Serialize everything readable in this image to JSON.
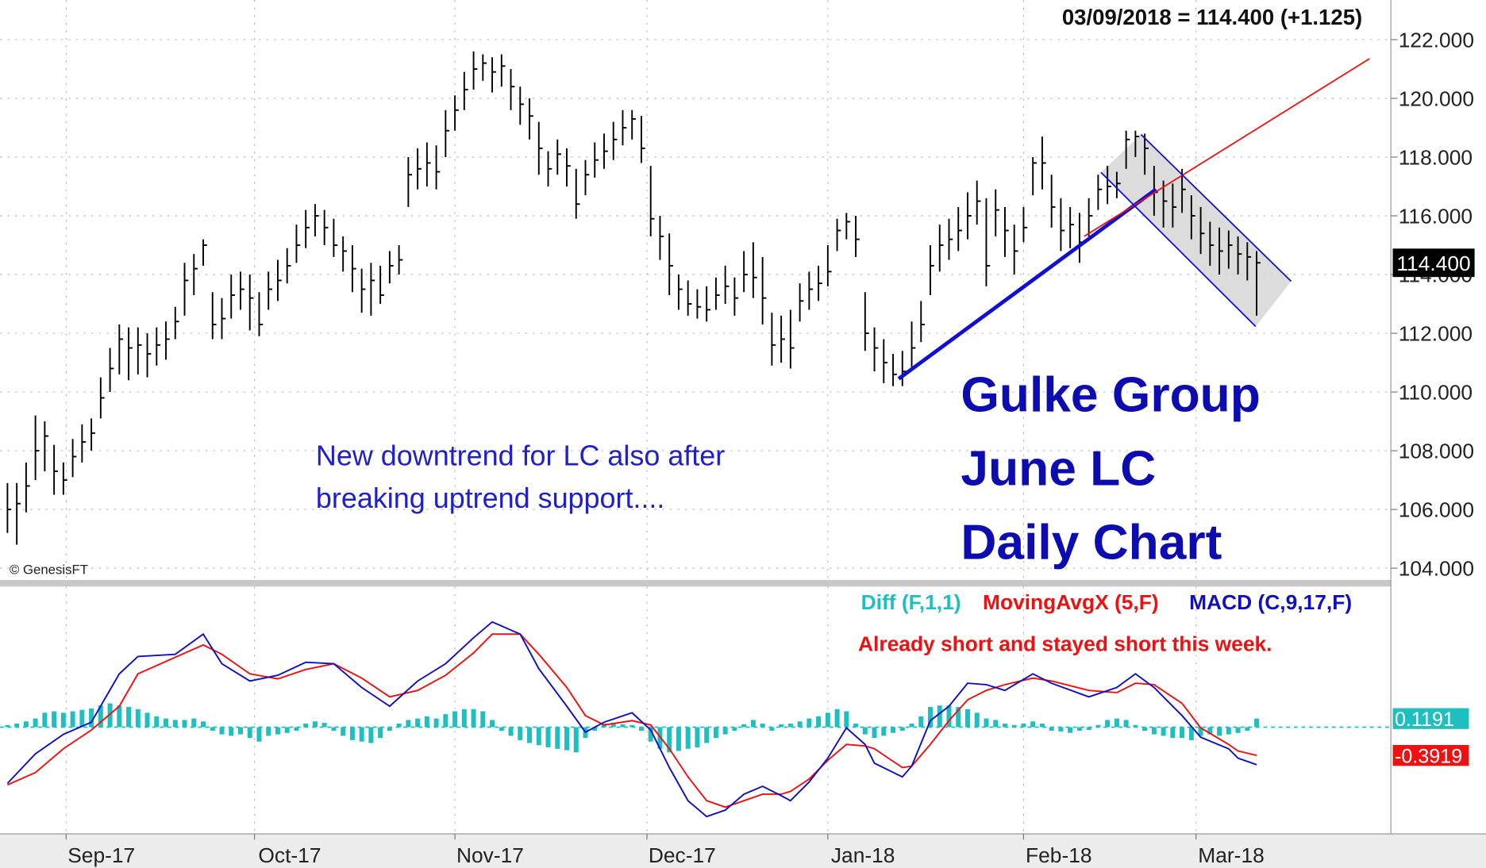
{
  "chart_data": [
    {
      "type": "ohlc",
      "title": "03/09/2018 = 114.400 (+1.125)",
      "last_close_label": "114.400",
      "copyright": "© GenesisFT",
      "annotations": [
        "New downtrend for LC also after",
        "breaking uptrend support...."
      ],
      "headline": [
        "Gulke Group",
        "June LC",
        "Daily Chart"
      ],
      "color": "#000000",
      "grid": true,
      "xlim": [
        -0.8,
        148.4
      ],
      "xticks": [
        {
          "value": 6.3,
          "label": "Sep-17"
        },
        {
          "value": 26.5,
          "label": "Oct-17"
        },
        {
          "value": 48,
          "label": "Nov-17"
        },
        {
          "value": 68.6,
          "label": "Dec-17"
        },
        {
          "value": 88,
          "label": "Jan-18"
        },
        {
          "value": 109,
          "label": "Feb-18"
        },
        {
          "value": 127.5,
          "label": "Mar-18"
        }
      ],
      "ylim": [
        103.6,
        123.35
      ],
      "yticks": [
        {
          "value": 104,
          "label": "104.000"
        },
        {
          "value": 106,
          "label": "106.000"
        },
        {
          "value": 108,
          "label": "108.000"
        },
        {
          "value": 110,
          "label": "110.000"
        },
        {
          "value": 112,
          "label": "112.000"
        },
        {
          "value": 114,
          "label": "114.000"
        },
        {
          "value": 116,
          "label": "116.000"
        },
        {
          "value": 118,
          "label": "118.000"
        },
        {
          "value": 120,
          "label": "120.000"
        },
        {
          "value": 122,
          "label": "122.000"
        }
      ],
      "high": [
        106.9,
        106.9,
        107.6,
        109.2,
        109.0,
        108.2,
        107.6,
        108.4,
        108.9,
        109.1,
        110.5,
        111.5,
        112.3,
        112.2,
        112.2,
        112.0,
        112.2,
        112.4,
        112.9,
        114.4,
        114.7,
        115.2,
        113.4,
        113.2,
        114.0,
        114.1,
        114.0,
        113.4,
        114.1,
        114.5,
        114.9,
        115.7,
        116.2,
        116.4,
        116.2,
        115.9,
        115.3,
        115.0,
        114.2,
        114.4,
        114.3,
        114.8,
        115.0,
        118.0,
        118.3,
        118.5,
        118.4,
        119.6,
        120.1,
        120.9,
        121.6,
        121.5,
        121.4,
        121.5,
        121.0,
        120.4,
        120.0,
        119.2,
        118.2,
        118.6,
        118.3,
        117.6,
        117.9,
        118.5,
        118.8,
        119.2,
        119.6,
        119.6,
        119.4,
        117.7,
        116.0,
        115.4,
        114.0,
        113.8,
        113.5,
        113.6,
        113.9,
        114.3,
        113.9,
        114.8,
        115.1,
        114.6,
        112.7,
        112.6,
        112.8,
        113.7,
        114.1,
        114.3,
        115.0,
        115.9,
        116.1,
        116.0,
        113.4,
        112.2,
        111.8,
        111.3,
        111.4,
        112.4,
        113.1,
        115.0,
        115.7,
        115.9,
        116.3,
        116.8,
        117.2,
        116.6,
        116.9,
        116.3,
        115.7,
        116.3,
        118.0,
        118.7,
        117.4,
        116.6,
        116.3,
        116.1,
        116.6,
        117.4,
        117.7,
        117.5,
        118.9,
        118.9,
        118.8,
        117.7,
        117.2,
        117.1,
        117.6,
        116.7,
        116.3,
        115.8,
        115.6,
        115.5,
        115.3,
        115.1,
        114.8
      ],
      "low": [
        105.2,
        104.8,
        105.9,
        107.0,
        107.3,
        106.5,
        106.5,
        107.1,
        107.6,
        108.0,
        109.1,
        110.0,
        110.6,
        110.4,
        110.6,
        110.5,
        110.9,
        111.1,
        111.8,
        112.6,
        113.3,
        114.3,
        111.8,
        111.8,
        112.5,
        112.8,
        112.1,
        111.9,
        112.8,
        113.1,
        113.7,
        114.4,
        114.9,
        115.3,
        115.0,
        114.6,
        114.1,
        113.4,
        112.7,
        112.6,
        113.0,
        113.7,
        114.0,
        116.3,
        116.9,
        117.0,
        116.9,
        118.0,
        118.9,
        119.6,
        120.3,
        120.6,
        120.2,
        120.4,
        119.6,
        119.1,
        118.6,
        117.4,
        117.0,
        117.4,
        117.0,
        115.9,
        116.7,
        117.3,
        117.6,
        117.9,
        118.4,
        118.6,
        117.8,
        115.3,
        114.5,
        113.3,
        112.8,
        112.6,
        112.5,
        112.4,
        112.8,
        113.0,
        112.6,
        113.4,
        113.2,
        112.3,
        110.9,
        111.0,
        110.8,
        112.4,
        112.8,
        113.1,
        113.6,
        114.8,
        115.2,
        114.6,
        111.4,
        110.7,
        110.3,
        110.2,
        110.2,
        110.8,
        111.7,
        113.3,
        114.1,
        114.5,
        114.8,
        115.2,
        115.7,
        113.6,
        115.3,
        114.6,
        114.0,
        115.1,
        116.7,
        116.9,
        115.6,
        114.8,
        114.9,
        114.4,
        115.3,
        116.2,
        116.4,
        116.6,
        117.6,
        118.0,
        117.4,
        116.0,
        115.6,
        115.6,
        116.1,
        115.2,
        114.7,
        114.3,
        114.0,
        114.2,
        114.0,
        113.8,
        112.6
      ],
      "close": [
        106.0,
        106.2,
        106.8,
        108.0,
        108.5,
        107.3,
        107.0,
        107.8,
        108.3,
        108.6,
        109.8,
        110.8,
        111.8,
        111.5,
        111.6,
        111.3,
        111.6,
        111.8,
        112.4,
        113.8,
        114.2,
        115.0,
        112.3,
        112.5,
        113.3,
        113.5,
        113.2,
        112.3,
        113.5,
        113.8,
        114.3,
        115.0,
        115.6,
        116.0,
        115.6,
        115.0,
        114.8,
        114.2,
        113.5,
        113.8,
        113.3,
        114.3,
        114.5,
        117.4,
        117.6,
        117.8,
        117.5,
        118.9,
        119.6,
        120.3,
        121.0,
        121.2,
        120.9,
        121.1,
        120.4,
        119.8,
        119.4,
        118.3,
        117.6,
        118.1,
        117.7,
        116.4,
        117.4,
        117.9,
        118.2,
        118.6,
        119.0,
        119.3,
        118.3,
        115.9,
        115.3,
        114.3,
        113.5,
        113.0,
        112.9,
        112.8,
        113.3,
        113.6,
        113.2,
        114.0,
        113.9,
        113.2,
        111.6,
        111.8,
        111.5,
        113.1,
        113.5,
        113.7,
        114.1,
        115.5,
        115.8,
        115.2,
        112.0,
        111.5,
        111.0,
        110.6,
        110.7,
        111.5,
        112.3,
        114.3,
        115.0,
        115.2,
        115.5,
        116.0,
        116.5,
        114.3,
        116.2,
        115.5,
        114.8,
        115.6,
        117.8,
        117.8,
        116.3,
        115.5,
        115.7,
        115.1,
        116.0,
        116.9,
        117.0,
        117.1,
        118.6,
        118.7,
        118.3,
        116.8,
        116.5,
        116.3,
        116.9,
        116.0,
        115.4,
        115.0,
        114.8,
        115.0,
        114.7,
        114.6,
        114.4
      ],
      "trendlines": [
        {
          "color": "#1010d0",
          "width": 4,
          "x": [
            95.6,
            123.2
          ],
          "y": [
            110.45,
            116.9
          ]
        },
        {
          "color": "#ee1111",
          "width": 1.5,
          "x": [
            115.5,
            146.1
          ],
          "y": [
            115.3,
            121.35
          ]
        },
        {
          "color": "#1010d0",
          "width": 1.5,
          "x": [
            121.6,
            137.7
          ],
          "y": [
            118.77,
            113.77
          ]
        },
        {
          "color": "#1010d0",
          "width": 1.5,
          "x": [
            117.3,
            133.9
          ],
          "y": [
            117.48,
            112.23
          ]
        }
      ],
      "channel_fill": "#d6d6d6"
    },
    {
      "type": "macd",
      "note": "Already short and stayed short this week.",
      "ylim": [
        -1.48,
        1.95
      ],
      "series": [
        {
          "name": "Diff (F,1,1)",
          "color": "#1fbfbf",
          "kind": "histogram",
          "last_value_box": true,
          "values": [
            0.03,
            0.05,
            0.08,
            0.12,
            0.2,
            0.22,
            0.2,
            0.22,
            0.24,
            0.26,
            0.3,
            0.33,
            0.3,
            0.28,
            0.25,
            0.2,
            0.15,
            0.12,
            0.1,
            0.1,
            0.12,
            0.08,
            -0.05,
            -0.1,
            -0.12,
            -0.1,
            -0.15,
            -0.2,
            -0.12,
            -0.1,
            -0.08,
            -0.05,
            0.05,
            0.08,
            0.06,
            -0.05,
            -0.12,
            -0.18,
            -0.2,
            -0.22,
            -0.15,
            -0.05,
            0.05,
            0.1,
            0.12,
            0.15,
            0.12,
            0.18,
            0.22,
            0.25,
            0.25,
            0.22,
            0.1,
            -0.05,
            -0.12,
            -0.18,
            -0.22,
            -0.25,
            -0.28,
            -0.3,
            -0.32,
            -0.35,
            -0.15,
            -0.05,
            0.05,
            0.06,
            0.04,
            0.03,
            -0.05,
            -0.2,
            -0.3,
            -0.35,
            -0.33,
            -0.3,
            -0.28,
            -0.22,
            -0.15,
            -0.1,
            -0.05,
            0.04,
            0.1,
            0.05,
            -0.05,
            0.04,
            0.05,
            0.08,
            0.12,
            0.15,
            0.2,
            0.25,
            0.22,
            0.05,
            -0.1,
            -0.15,
            -0.12,
            -0.08,
            -0.05,
            0.05,
            0.15,
            0.28,
            0.3,
            0.3,
            0.28,
            0.25,
            0.2,
            0.12,
            0.1,
            0.05,
            0.03,
            0.05,
            0.08,
            0.05,
            -0.05,
            -0.06,
            -0.08,
            -0.05,
            -0.04,
            0.03,
            0.1,
            0.12,
            0.1,
            0.03,
            -0.05,
            -0.1,
            -0.12,
            -0.15,
            -0.15,
            -0.18,
            -0.12,
            -0.1,
            -0.12,
            -0.1,
            -0.08,
            -0.05,
            0.1191
          ]
        },
        {
          "name": "MovingAvgX (5,F)",
          "color": "#ee1111",
          "kind": "line",
          "last_value_box": true,
          "x": [
            0,
            3,
            6,
            9,
            12,
            14,
            18,
            21,
            23,
            26,
            29,
            32,
            35,
            38,
            41,
            44,
            47,
            50,
            52,
            55,
            57,
            60,
            62,
            64,
            67,
            69,
            71,
            73,
            75,
            77,
            79,
            81,
            83,
            84,
            86,
            88,
            90,
            92,
            93,
            96,
            97,
            99,
            101,
            103,
            105,
            107,
            110,
            112,
            116,
            119,
            121,
            123,
            126,
            128,
            131,
            132,
            134
          ],
          "values": [
            -0.8,
            -0.63,
            -0.3,
            -0.04,
            0.29,
            0.74,
            0.97,
            1.14,
            1.01,
            0.74,
            0.67,
            0.8,
            0.88,
            0.68,
            0.42,
            0.51,
            0.72,
            1.03,
            1.29,
            1.29,
            1.01,
            0.55,
            0.16,
            0.03,
            0.09,
            0.03,
            -0.3,
            -0.69,
            -1.02,
            -1.11,
            -1.02,
            -0.93,
            -0.93,
            -0.89,
            -0.72,
            -0.46,
            -0.24,
            -0.26,
            -0.3,
            -0.56,
            -0.54,
            -0.24,
            0.09,
            0.38,
            0.51,
            0.59,
            0.68,
            0.64,
            0.51,
            0.48,
            0.61,
            0.59,
            0.33,
            -0.01,
            -0.24,
            -0.33,
            -0.3919
          ]
        },
        {
          "name": "MACD (C,9,17,F)",
          "color": "#1010c0",
          "kind": "line",
          "x": [
            0,
            3,
            6,
            9,
            12,
            14,
            18,
            21,
            23,
            26,
            29,
            32,
            35,
            38,
            41,
            44,
            47,
            50,
            52,
            55,
            57,
            60,
            62,
            64,
            67,
            69,
            71,
            73,
            75,
            77,
            79,
            81,
            83,
            84,
            86,
            88,
            90,
            92,
            93,
            96,
            97,
            99,
            101,
            103,
            105,
            107,
            110,
            112,
            116,
            119,
            121,
            123,
            126,
            128,
            131,
            132,
            134
          ],
          "values": [
            -0.78,
            -0.37,
            -0.1,
            0.07,
            0.74,
            0.98,
            1.01,
            1.29,
            0.88,
            0.64,
            0.72,
            0.9,
            0.88,
            0.55,
            0.29,
            0.64,
            0.88,
            1.24,
            1.46,
            1.29,
            0.81,
            0.29,
            -0.07,
            0.07,
            0.2,
            -0.04,
            -0.56,
            -1.02,
            -1.24,
            -1.15,
            -0.93,
            -0.82,
            -0.95,
            -1.02,
            -0.76,
            -0.43,
            -0.01,
            -0.24,
            -0.5,
            -0.69,
            -0.54,
            0.09,
            0.29,
            0.61,
            0.59,
            0.51,
            0.74,
            0.61,
            0.42,
            0.55,
            0.74,
            0.55,
            0.16,
            -0.14,
            -0.3,
            -0.43,
            -0.52
          ]
        }
      ]
    }
  ]
}
